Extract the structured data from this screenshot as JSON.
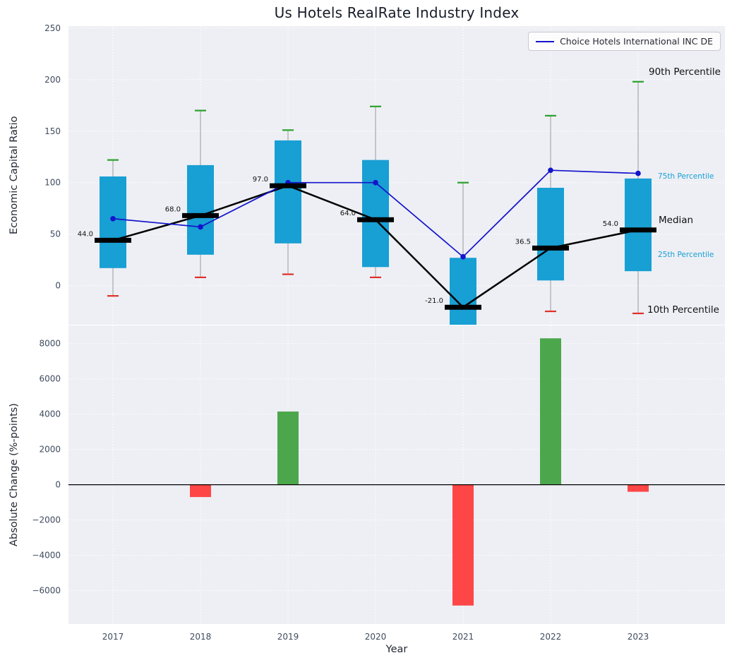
{
  "figure": {
    "title": "Us Hotels RealRate Industry Index",
    "panel_background": "#edeff4",
    "grid_color": "#ffffff",
    "tick_color": "#3f4b5e"
  },
  "legend": {
    "label": "Choice Hotels International INC DE"
  },
  "percentile_labels": {
    "p90": "90th Percentile",
    "p75": "75th Percentile",
    "median": "Median",
    "p25": "25th Percentile",
    "p10": "10th Percentile"
  },
  "chart_data": [
    {
      "type": "boxplot",
      "title": "Us Hotels RealRate Industry Index",
      "ylabel": "Economic Capital Ratio",
      "ylim": [
        -38,
        252
      ],
      "yticks": [
        0,
        50,
        100,
        150,
        200,
        250
      ],
      "grid": true,
      "legend_position": "upper right",
      "categories": [
        "2017",
        "2018",
        "2019",
        "2020",
        "2021",
        "2022",
        "2023"
      ],
      "boxes": [
        {
          "category": "2017",
          "whisker_low": -10,
          "q1": 17,
          "median": 44,
          "q3": 106,
          "whisker_high": 122,
          "median_label": "44.0"
        },
        {
          "category": "2018",
          "whisker_low": 8,
          "q1": 30,
          "median": 68,
          "q3": 117,
          "whisker_high": 170,
          "median_label": "68.0"
        },
        {
          "category": "2019",
          "whisker_low": 11,
          "q1": 41,
          "median": 97,
          "q3": 141,
          "whisker_high": 151,
          "median_label": "97.0"
        },
        {
          "category": "2020",
          "whisker_low": 8,
          "q1": 18,
          "median": 64,
          "q3": 122,
          "whisker_high": 174,
          "median_label": "64.0"
        },
        {
          "category": "2021",
          "whisker_low": null,
          "q1": -38,
          "median": -21,
          "q3": 27,
          "whisker_high": 100,
          "median_label": "-21.0"
        },
        {
          "category": "2022",
          "whisker_low": -25,
          "q1": 5,
          "median": 36.5,
          "q3": 95,
          "whisker_high": 165,
          "median_label": "36.5"
        },
        {
          "category": "2023",
          "whisker_low": -27,
          "q1": 14,
          "median": 54,
          "q3": 104,
          "whisker_high": 198,
          "median_label": "54.0"
        }
      ],
      "series": [
        {
          "name": "Choice Hotels International INC DE",
          "values": [
            65,
            57,
            100,
            100,
            28,
            112,
            109
          ]
        }
      ],
      "colors": {
        "box_fill": "#189fd4",
        "whisker": "#999999",
        "cap_high": "#2ca02c",
        "cap_low": "#e03028",
        "median": "#000000",
        "series_line": "#1414cc"
      }
    },
    {
      "type": "bar",
      "ylabel": "Absolute Change (%-points)",
      "xlabel": "Year",
      "ylim": [
        -7900,
        9030
      ],
      "yticks": [
        -6000,
        -4000,
        -2000,
        0,
        2000,
        4000,
        6000,
        8000
      ],
      "grid": true,
      "categories": [
        "2017",
        "2018",
        "2019",
        "2020",
        "2021",
        "2022",
        "2023"
      ],
      "values": [
        0,
        -700,
        4150,
        0,
        -6850,
        8300,
        -400
      ],
      "colors": {
        "positive": "#3a9e3a",
        "negative": "#ff3333",
        "zero_line": "#000000"
      }
    }
  ]
}
